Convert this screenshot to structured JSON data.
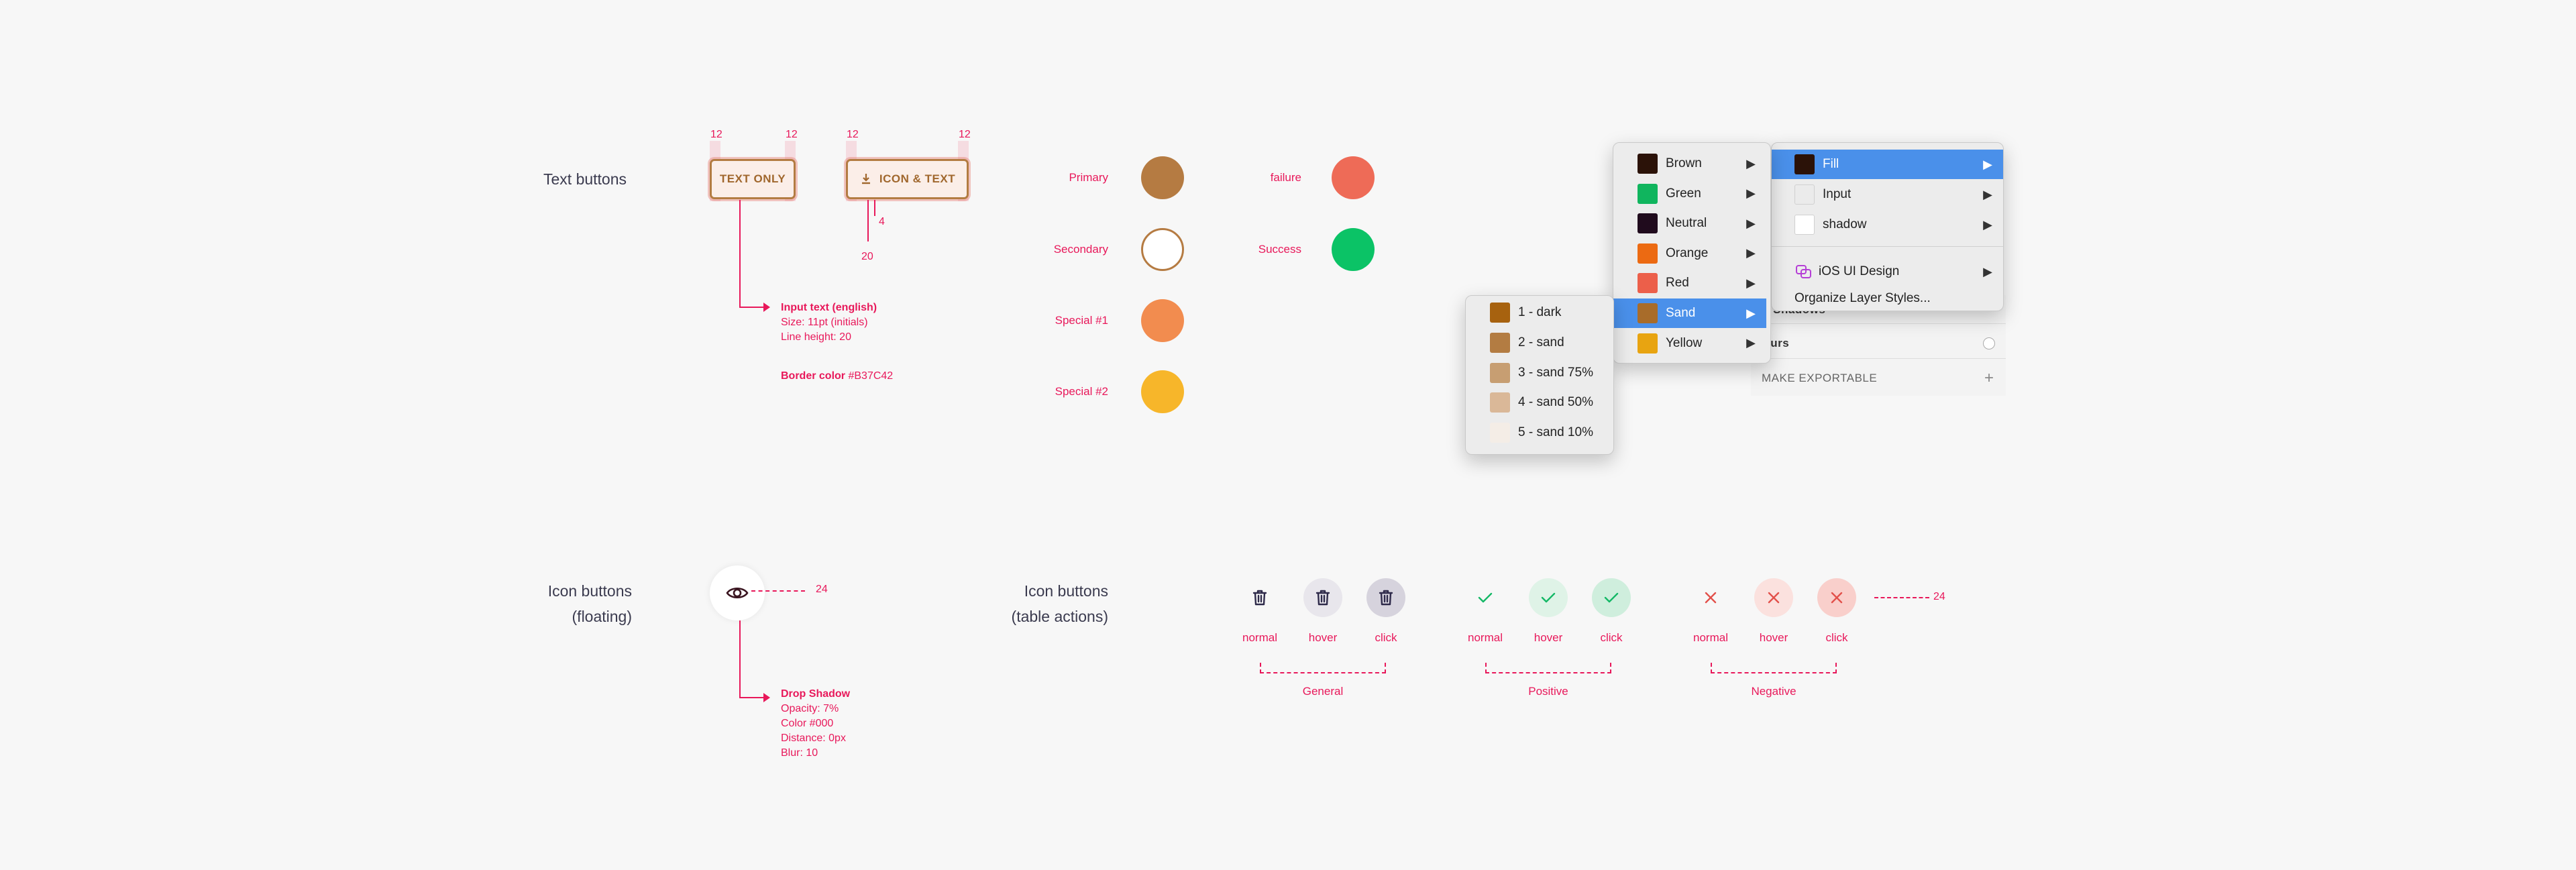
{
  "sections": {
    "text_buttons": "Text buttons",
    "icon_buttons_floating_1": "Icon buttons",
    "icon_buttons_floating_2": "(floating)",
    "icon_buttons_table_1": "Icon buttons",
    "icon_buttons_table_2": "(table actions)"
  },
  "text_buttons": {
    "text_only_label": "TEXT ONLY",
    "icon_text_label": "ICON & TEXT",
    "padding_left_1": "12",
    "padding_right_1": "12",
    "padding_left_2": "12",
    "padding_right_2": "12",
    "icon_gap": "4",
    "height": "20",
    "spec_title": "Input text (english)",
    "spec_size": "Size: 11pt (initials)",
    "spec_line_height": "Line height: 20",
    "border_label": "Border color",
    "border_value": "#B37C42"
  },
  "colors": {
    "left": [
      {
        "label": "Primary",
        "color": "#b57b42",
        "style": "filled"
      },
      {
        "label": "Secondary",
        "color": "#b57b42",
        "style": "outline"
      },
      {
        "label": "Special #1",
        "color": "#f28c4f",
        "style": "filled"
      },
      {
        "label": "Special #2",
        "color": "#f7b62a",
        "style": "filled"
      }
    ],
    "right": [
      {
        "label": "failure",
        "color": "#ee6b57",
        "style": "filled"
      },
      {
        "label": "Success",
        "color": "#0bc366",
        "style": "filled"
      }
    ]
  },
  "color_menu": {
    "items": [
      {
        "label": "Brown",
        "swatch": "#2b1208",
        "selected": false
      },
      {
        "label": "Green",
        "swatch": "#10b55e",
        "selected": false
      },
      {
        "label": "Neutral",
        "swatch": "#200b1d",
        "selected": false
      },
      {
        "label": "Orange",
        "swatch": "#ec6a12",
        "selected": false
      },
      {
        "label": "Red",
        "swatch": "#ec5f4a",
        "selected": false
      },
      {
        "label": "Sand",
        "swatch": "#a86c2a",
        "selected": true
      },
      {
        "label": "Yellow",
        "swatch": "#e8a411",
        "selected": false
      }
    ],
    "arrow": "▶"
  },
  "sand_menu": {
    "items": [
      {
        "label": "1 - dark",
        "swatch": "#a7620f"
      },
      {
        "label": "2 - sand",
        "swatch": "#b37c42"
      },
      {
        "label": "3 - sand 75%",
        "swatch": "#c79e72"
      },
      {
        "label": "4 - sand 50%",
        "swatch": "#dab898"
      },
      {
        "label": "5 - sand 10%",
        "swatch": "#f4ede6"
      }
    ]
  },
  "layer_menu": {
    "items": [
      {
        "label": "Fill",
        "swatch": "#2b1208",
        "selected": true
      },
      {
        "label": "Input",
        "swatch": "#ebebeb",
        "selected": false
      },
      {
        "label": "shadow",
        "swatch": "#ffffff",
        "selected": false
      }
    ],
    "library": "iOS UI Design",
    "organize": "Organize Layer Styles..."
  },
  "inspector": {
    "inner_shadows": "ner Shadows",
    "blurs": "lurs",
    "make_exportable": "MAKE EXPORTABLE"
  },
  "floating_button": {
    "size": "24",
    "shadow_title": "Drop Shadow",
    "opacity": "Opacity: 7%",
    "color": "Color #000",
    "distance": "Distance: 0px",
    "blur": "Blur: 10"
  },
  "table_actions": {
    "states": [
      "normal",
      "hover",
      "click"
    ],
    "groups": [
      "General",
      "Positive",
      "Negative"
    ],
    "size": "24",
    "colors": {
      "general_icon": "#2e2a4a",
      "positive_icon": "#14b866",
      "negative_icon": "#e2504a"
    }
  }
}
